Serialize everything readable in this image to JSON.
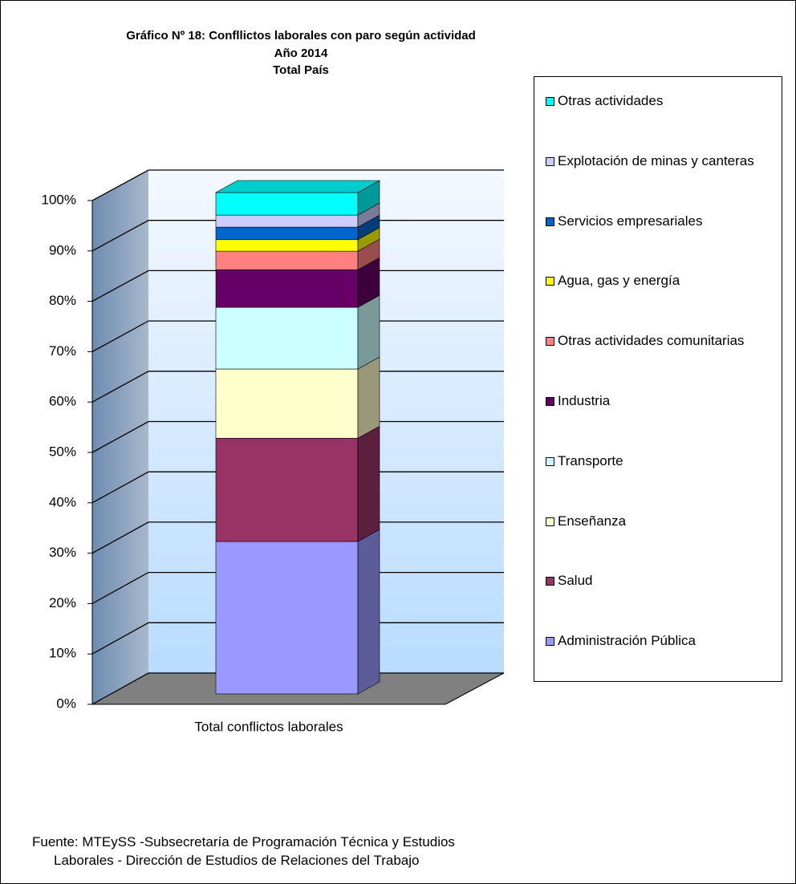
{
  "chart_data": {
    "type": "bar3d_stacked",
    "title": "Gráfico Nº 18: Confllictos laborales con paro según actividad",
    "subtitle": [
      "Año 2014",
      "Total País"
    ],
    "categories": [
      "Total conflictos laborales"
    ],
    "series": [
      {
        "name": "Administración Pública",
        "color": "#9999ff",
        "values": [
          30.4
        ]
      },
      {
        "name": "Salud",
        "color": "#993366",
        "values": [
          20.6
        ]
      },
      {
        "name": "Enseñanza",
        "color": "#ffffcc",
        "values": [
          13.8
        ]
      },
      {
        "name": "Transporte",
        "color": "#ccffff",
        "values": [
          12.3
        ]
      },
      {
        "name": "Industria",
        "color": "#660066",
        "values": [
          7.5
        ]
      },
      {
        "name": "Otras actividades comunitarias",
        "color": "#ff8080",
        "values": [
          3.7
        ]
      },
      {
        "name": "Agua, gas y energía",
        "color": "#ffff00",
        "values": [
          2.3
        ]
      },
      {
        "name": "Servicios empresariales",
        "color": "#0066cc",
        "values": [
          2.5
        ]
      },
      {
        "name": "Explotación de minas y canteras",
        "color": "#ccccff",
        "values": [
          2.4
        ]
      },
      {
        "name": "Otras actividades",
        "color": "#00ffff",
        "values": [
          4.5
        ]
      }
    ],
    "ylim": [
      0,
      100
    ],
    "yticks": [
      {
        "value": 0,
        "label": "0%"
      },
      {
        "value": 10,
        "label": "10%"
      },
      {
        "value": 20,
        "label": "20%"
      },
      {
        "value": 30,
        "label": "30%"
      },
      {
        "value": 40,
        "label": "40%"
      },
      {
        "value": 50,
        "label": "50%"
      },
      {
        "value": 60,
        "label": "60%"
      },
      {
        "value": 70,
        "label": "70%"
      },
      {
        "value": 80,
        "label": "80%"
      },
      {
        "value": 90,
        "label": "90%"
      },
      {
        "value": 100,
        "label": "100%"
      }
    ],
    "grid": true,
    "legend": "right",
    "source": [
      "Fuente: MTEySS -Subsecretaría de Programación Técnica y Estudios",
      "Laborales - Dirección de Estudios de Relaciones del Trabajo"
    ]
  }
}
